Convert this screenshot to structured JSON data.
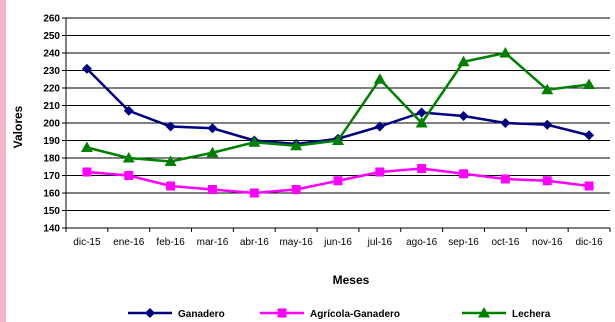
{
  "chart_data": {
    "type": "line",
    "title": "",
    "xlabel": "Meses",
    "ylabel": "Valores",
    "ylim": [
      140,
      260
    ],
    "ytick_step": 10,
    "grid": "horizontal",
    "legend_position": "bottom",
    "categories": [
      "dic-15",
      "ene-16",
      "feb-16",
      "mar-16",
      "abr-16",
      "may-16",
      "jun-16",
      "jul-16",
      "ago-16",
      "sep-16",
      "oct-16",
      "nov-16",
      "dic-16"
    ],
    "series": [
      {
        "name": "Ganadero",
        "color": "#000080",
        "marker": "diamond",
        "values": [
          231,
          207,
          198,
          197,
          190,
          188,
          191,
          198,
          206,
          204,
          200,
          199,
          193
        ]
      },
      {
        "name": "Agrícola-Ganadero",
        "color": "#ff00ff",
        "marker": "square",
        "values": [
          172,
          170,
          164,
          162,
          160,
          162,
          167,
          172,
          174,
          171,
          168,
          167,
          164
        ]
      },
      {
        "name": "Lechera",
        "color": "#008000",
        "marker": "triangle",
        "values": [
          186,
          180,
          178,
          183,
          189,
          187,
          190,
          225,
          200,
          235,
          240,
          219,
          222
        ]
      }
    ]
  }
}
